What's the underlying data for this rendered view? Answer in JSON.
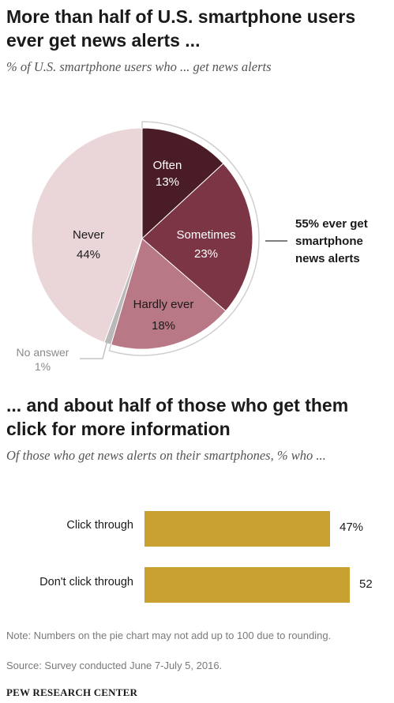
{
  "header": {
    "title": "More than half of U.S. smartphone users ever get news alerts ...",
    "subtitle": "% of U.S. smartphone users who ... get news alerts"
  },
  "pie_callout": {
    "line1": "55% ever get",
    "line2": "smartphone",
    "line3": "news alerts"
  },
  "section2": {
    "title": "... and about half of those who get them click for more information",
    "subtitle": "Of those who get news alerts on their smartphones, % who ..."
  },
  "footer": {
    "note": "Note: Numbers on the pie chart may not add up to 100 due to rounding.",
    "source": "Source: Survey conducted June 7-July 5, 2016.",
    "brand": "PEW RESEARCH CENTER"
  },
  "colors": {
    "often": "#4a1c26",
    "sometimes": "#7b3544",
    "hardly_ever": "#b87885",
    "never": "#ead6d9",
    "no_answer": "#b9b9b9",
    "bar": "#c9a131"
  },
  "chart_data": [
    {
      "type": "pie",
      "title": "More than half of U.S. smartphone users ever get news alerts ...",
      "subtitle": "% of U.S. smartphone users who ... get news alerts",
      "slices": [
        {
          "label": "Often",
          "value": 13,
          "value_label": "13%"
        },
        {
          "label": "Sometimes",
          "value": 23,
          "value_label": "23%"
        },
        {
          "label": "Hardly ever",
          "value": 18,
          "value_label": "18%"
        },
        {
          "label": "No answer",
          "value": 1,
          "value_label": "1%"
        },
        {
          "label": "Never",
          "value": 44,
          "value_label": "44%"
        }
      ],
      "annotation": "55% ever get smartphone news alerts"
    },
    {
      "type": "bar",
      "orientation": "horizontal",
      "title": "... and about half of those who get them click for more information",
      "subtitle": "Of those who get news alerts on their smartphones, % who ...",
      "categories": [
        "Click through",
        "Don't click through"
      ],
      "values": [
        47,
        52
      ],
      "value_labels": [
        "47%",
        "52"
      ]
    }
  ]
}
